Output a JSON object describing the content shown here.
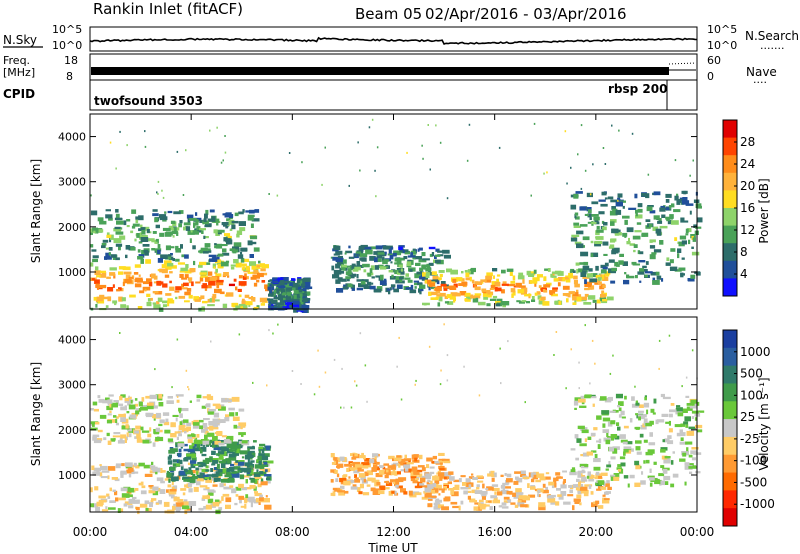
{
  "header": {
    "station": "Rankin Inlet (fitACF)",
    "beam": "Beam 05",
    "dates": "02/Apr/2016 - 03/Apr/2016"
  },
  "noise_panel": {
    "left_label": "N.Sky",
    "right_label": "N.Search",
    "right_legend_line": "·······",
    "left_ticks": [
      "10^5",
      "10^0"
    ],
    "right_ticks": [
      "10^5",
      "10^0"
    ]
  },
  "freq_panel": {
    "left_label_1": "Freq.",
    "left_label_2": "[MHz]",
    "right_label": "Nave",
    "right_legend_line": "····",
    "left_ticks": [
      "18",
      "8"
    ],
    "right_ticks": [
      "60",
      "0"
    ]
  },
  "cpid_panel": {
    "label": "CPID",
    "program_1": "twofsound 3503",
    "program_2": "rbsp 200"
  },
  "axes": {
    "ylabel": "Slant Range [km]",
    "xlabel": "Time UT",
    "y_ticks": [
      "4000",
      "3000",
      "2000",
      "1000"
    ],
    "x_ticks": [
      "00:00",
      "04:00",
      "08:00",
      "12:00",
      "16:00",
      "20:00",
      "00:00"
    ]
  },
  "colorbars": {
    "power": {
      "label": "Power [dB]",
      "ticks": [
        "28",
        "24",
        "20",
        "16",
        "12",
        "8",
        "4"
      ],
      "colors": [
        "#e00000",
        "#ff4400",
        "#ff8c1a",
        "#ffb23a",
        "#ffdd22",
        "#8ed36a",
        "#4aa258",
        "#2d6d6a",
        "#204f9a",
        "#1010ff"
      ]
    },
    "velocity": {
      "label": "Velocity [m s⁻¹]",
      "ticks": [
        "1000",
        "500",
        "100",
        "25",
        "-25",
        "-100",
        "-500",
        "-1000"
      ],
      "colors": [
        "#1b3fa0",
        "#2a5ea0",
        "#2f7a6a",
        "#3f9b4a",
        "#6ac83a",
        "#c8c8c8",
        "#ffcc66",
        "#ff9a33",
        "#ff6a00",
        "#ff2800",
        "#e00000"
      ]
    }
  },
  "chart_data": [
    {
      "type": "heatmap",
      "title": "Power",
      "xlabel": "Time UT",
      "ylabel": "Slant Range [km]",
      "x_range": [
        "00:00",
        "24:00"
      ],
      "ylim": [
        180,
        4500
      ],
      "colorbar_label": "Power [dB]",
      "colorbar_range": [
        0,
        30
      ],
      "x_ticks": [
        "00:00",
        "04:00",
        "08:00",
        "12:00",
        "16:00",
        "20:00",
        "00:00"
      ],
      "regions": [
        {
          "t0": 0.0,
          "t1": 7.0,
          "r0": 200,
          "r1": 1300,
          "dB": 26
        },
        {
          "t0": 0.0,
          "t1": 6.5,
          "r0": 1300,
          "r1": 2400,
          "dB": 12
        },
        {
          "t0": 7.0,
          "t1": 8.5,
          "r0": 200,
          "r1": 900,
          "dB": 8
        },
        {
          "t0": 9.5,
          "t1": 14.0,
          "r0": 600,
          "r1": 1600,
          "dB": 10
        },
        {
          "t0": 13.0,
          "t1": 20.5,
          "r0": 300,
          "r1": 1100,
          "dB": 24
        },
        {
          "t0": 19.0,
          "t1": 24.0,
          "r0": 800,
          "r1": 2800,
          "dB": 12
        }
      ]
    },
    {
      "type": "heatmap",
      "title": "Velocity",
      "xlabel": "Time UT",
      "ylabel": "Slant Range [km]",
      "x_range": [
        "00:00",
        "24:00"
      ],
      "ylim": [
        180,
        4500
      ],
      "colorbar_label": "Velocity [m s⁻¹]",
      "colorbar_range": [
        -1000,
        1000
      ],
      "x_ticks": [
        "00:00",
        "04:00",
        "08:00",
        "12:00",
        "16:00",
        "20:00",
        "00:00"
      ],
      "regions": [
        {
          "t0": 0.0,
          "t1": 7.0,
          "r0": 200,
          "r1": 1300,
          "v": -100
        },
        {
          "t0": 3.0,
          "t1": 7.0,
          "r0": 900,
          "r1": 1800,
          "v": 500
        },
        {
          "t0": 0.0,
          "t1": 6.0,
          "r0": 1700,
          "r1": 2800,
          "v": 0
        },
        {
          "t0": 9.5,
          "t1": 14.0,
          "r0": 600,
          "r1": 1500,
          "v": -300
        },
        {
          "t0": 13.0,
          "t1": 20.5,
          "r0": 300,
          "r1": 1100,
          "v": -200
        },
        {
          "t0": 19.0,
          "t1": 24.0,
          "r0": 800,
          "r1": 2800,
          "v": 100
        }
      ]
    }
  ]
}
